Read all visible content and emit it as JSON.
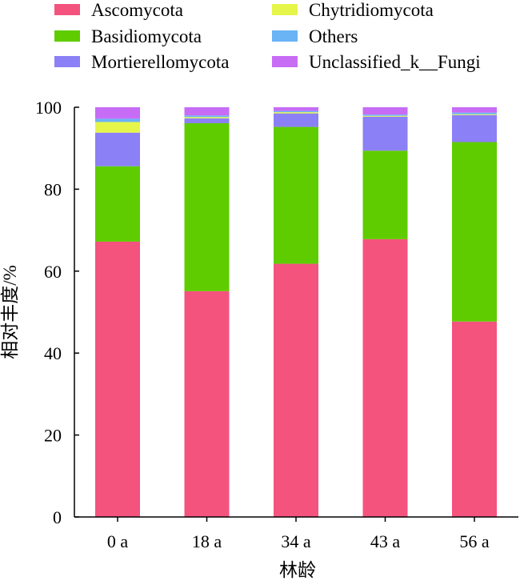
{
  "chart_data": {
    "type": "bar",
    "stacked": true,
    "xlabel": "林龄",
    "ylabel": "相对丰度/%",
    "ylim": [
      0,
      100
    ],
    "yticks": [
      0,
      20,
      40,
      60,
      80,
      100
    ],
    "categories": [
      "0 a",
      "18 a",
      "34 a",
      "43 a",
      "56 a"
    ],
    "legend_position": "top",
    "grid": false,
    "series": [
      {
        "name": "Ascomycota",
        "color": "#f4537e",
        "values": [
          67.2,
          55.1,
          61.8,
          67.8,
          47.7
        ]
      },
      {
        "name": "Basidiomycota",
        "color": "#5fcc00",
        "values": [
          18.4,
          41.0,
          33.4,
          21.6,
          43.8
        ]
      },
      {
        "name": "Mortierellomycota",
        "color": "#8b80f5",
        "values": [
          8.2,
          1.2,
          3.3,
          8.3,
          6.6
        ]
      },
      {
        "name": "Chytridiomycota",
        "color": "#e6f54a",
        "values": [
          2.6,
          0.3,
          0.3,
          0.2,
          0.2
        ]
      },
      {
        "name": "Others",
        "color": "#6ab3f5",
        "values": [
          0.8,
          0.4,
          0.3,
          0.3,
          0.4
        ]
      },
      {
        "name": "Unclassified_k__Fungi",
        "color": "#c76cf5",
        "values": [
          2.8,
          2.0,
          0.9,
          1.8,
          1.3
        ]
      }
    ]
  }
}
